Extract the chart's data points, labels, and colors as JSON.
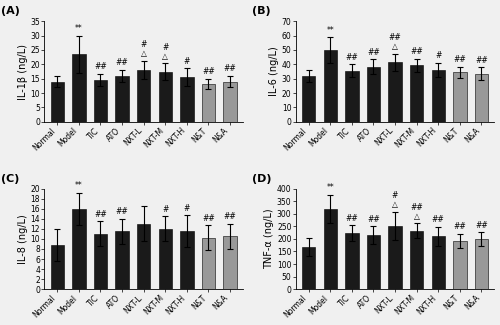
{
  "categories": [
    "Normal",
    "Model",
    "TIC",
    "ATO",
    "NXT-L",
    "NXT-M",
    "NXT-H",
    "N&T",
    "N&A"
  ],
  "panel_A": {
    "title": "(A)",
    "ylabel": "IL-1β (ng/L)",
    "ylim": [
      0,
      35
    ],
    "yticks": [
      0,
      5,
      10,
      15,
      20,
      25,
      30,
      35
    ],
    "values": [
      14.0,
      23.5,
      14.5,
      16.0,
      18.0,
      17.5,
      15.5,
      13.2,
      14.0
    ],
    "errors": [
      1.8,
      6.5,
      2.2,
      2.2,
      3.2,
      2.8,
      3.2,
      1.8,
      2.0
    ],
    "annotations": [
      "",
      "**",
      "##",
      "##",
      "#\n△",
      "#\n△",
      "#",
      "##",
      "##"
    ],
    "colors": [
      "#1a1a1a",
      "#1a1a1a",
      "#1a1a1a",
      "#1a1a1a",
      "#1a1a1a",
      "#1a1a1a",
      "#1a1a1a",
      "#999999",
      "#999999"
    ]
  },
  "panel_B": {
    "title": "(B)",
    "ylabel": "IL-6 (ng/L)",
    "ylim": [
      0,
      70
    ],
    "yticks": [
      0,
      10,
      20,
      30,
      40,
      50,
      60,
      70
    ],
    "values": [
      32.0,
      50.0,
      35.5,
      38.5,
      41.5,
      39.5,
      36.0,
      34.5,
      33.5
    ],
    "errors": [
      4.0,
      9.0,
      4.5,
      5.0,
      6.0,
      4.5,
      5.0,
      4.0,
      4.5
    ],
    "annotations": [
      "",
      "**",
      "##",
      "##",
      "##\n△",
      "##",
      "#",
      "##",
      "##"
    ],
    "colors": [
      "#1a1a1a",
      "#1a1a1a",
      "#1a1a1a",
      "#1a1a1a",
      "#1a1a1a",
      "#1a1a1a",
      "#1a1a1a",
      "#999999",
      "#999999"
    ]
  },
  "panel_C": {
    "title": "(C)",
    "ylabel": "IL-8 (ng/L)",
    "ylim": [
      0,
      20
    ],
    "yticks": [
      0,
      2,
      4,
      6,
      8,
      10,
      12,
      14,
      16,
      18,
      20
    ],
    "values": [
      8.8,
      16.0,
      11.0,
      11.5,
      13.0,
      12.0,
      11.5,
      10.2,
      10.5
    ],
    "errors": [
      3.2,
      3.2,
      2.5,
      2.5,
      3.5,
      2.5,
      3.2,
      2.5,
      2.5
    ],
    "annotations": [
      "",
      "**",
      "##",
      "##",
      "",
      "#",
      "#",
      "##",
      "##"
    ],
    "colors": [
      "#1a1a1a",
      "#1a1a1a",
      "#1a1a1a",
      "#1a1a1a",
      "#1a1a1a",
      "#1a1a1a",
      "#1a1a1a",
      "#999999",
      "#999999"
    ]
  },
  "panel_D": {
    "title": "(D)",
    "ylabel": "TNF-α (ng/L)",
    "ylim": [
      0,
      400
    ],
    "yticks": [
      0,
      50,
      100,
      150,
      200,
      250,
      300,
      350,
      400
    ],
    "values": [
      168,
      320,
      222,
      215,
      252,
      232,
      210,
      192,
      198
    ],
    "errors": [
      35,
      55,
      32,
      35,
      55,
      30,
      38,
      28,
      28
    ],
    "annotations": [
      "",
      "**",
      "##",
      "##",
      "#\n△",
      "##\n△",
      "##",
      "##",
      "##"
    ],
    "colors": [
      "#1a1a1a",
      "#1a1a1a",
      "#1a1a1a",
      "#1a1a1a",
      "#1a1a1a",
      "#1a1a1a",
      "#1a1a1a",
      "#999999",
      "#999999"
    ]
  },
  "annotation_fontsize": 5.5,
  "tick_fontsize": 5.5,
  "label_fontsize": 7,
  "title_fontsize": 8,
  "bar_width": 0.62,
  "figure_facecolor": "#f0f0f0"
}
